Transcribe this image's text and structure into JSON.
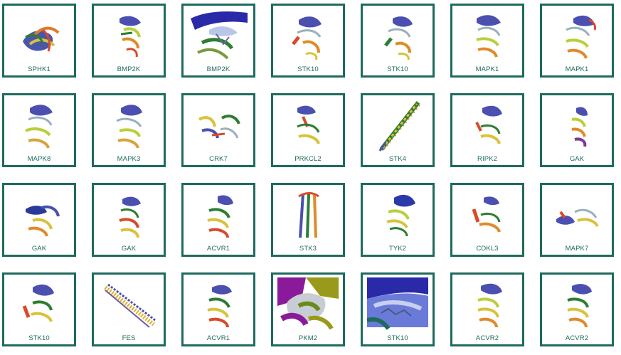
{
  "theme": {
    "accent": "#1d6b5f",
    "label_color": "#1d6b5f",
    "background": "#ffffff"
  },
  "tiles": [
    {
      "label": "SPHK1",
      "thumb": "mixed-structure-icon"
    },
    {
      "label": "BMP2K",
      "thumb": "kinase-structure-icon"
    },
    {
      "label": "BMP2K",
      "thumb": "closeup-ribbon-icon"
    },
    {
      "label": "STK10",
      "thumb": "kinase-structure-icon"
    },
    {
      "label": "STK10",
      "thumb": "kinase-structure-icon"
    },
    {
      "label": "MAPK1",
      "thumb": "kinase-structure-icon"
    },
    {
      "label": "MAPK1",
      "thumb": "kinase-structure-icon"
    },
    {
      "label": "MAPK8",
      "thumb": "kinase-structure-icon"
    },
    {
      "label": "MAPK3",
      "thumb": "kinase-structure-icon"
    },
    {
      "label": "CRK7",
      "thumb": "dimer-structure-icon"
    },
    {
      "label": "PRKCL2",
      "thumb": "kinase-structure-icon"
    },
    {
      "label": "STK4",
      "thumb": "helix-structure-icon"
    },
    {
      "label": "RIPK2",
      "thumb": "kinase-structure-icon"
    },
    {
      "label": "GAK",
      "thumb": "kinase-structure-icon"
    },
    {
      "label": "GAK",
      "thumb": "kinase-structure-icon"
    },
    {
      "label": "GAK",
      "thumb": "kinase-structure-icon"
    },
    {
      "label": "ACVR1",
      "thumb": "kinase-structure-icon"
    },
    {
      "label": "STK3",
      "thumb": "coiled-coil-structure-icon"
    },
    {
      "label": "TYK2",
      "thumb": "kinase-structure-icon"
    },
    {
      "label": "CDKL3",
      "thumb": "kinase-structure-icon"
    },
    {
      "label": "MAPK7",
      "thumb": "kinase-structure-icon"
    },
    {
      "label": "STK10",
      "thumb": "kinase-structure-icon"
    },
    {
      "label": "FES",
      "thumb": "fibril-structure-icon"
    },
    {
      "label": "ACVR1",
      "thumb": "kinase-structure-icon"
    },
    {
      "label": "PKM2",
      "thumb": "surface-closeup-icon"
    },
    {
      "label": "STK10",
      "thumb": "surface-closeup-icon"
    },
    {
      "label": "ACVR2",
      "thumb": "kinase-structure-icon"
    },
    {
      "label": "ACVR2",
      "thumb": "kinase-structure-icon"
    }
  ]
}
